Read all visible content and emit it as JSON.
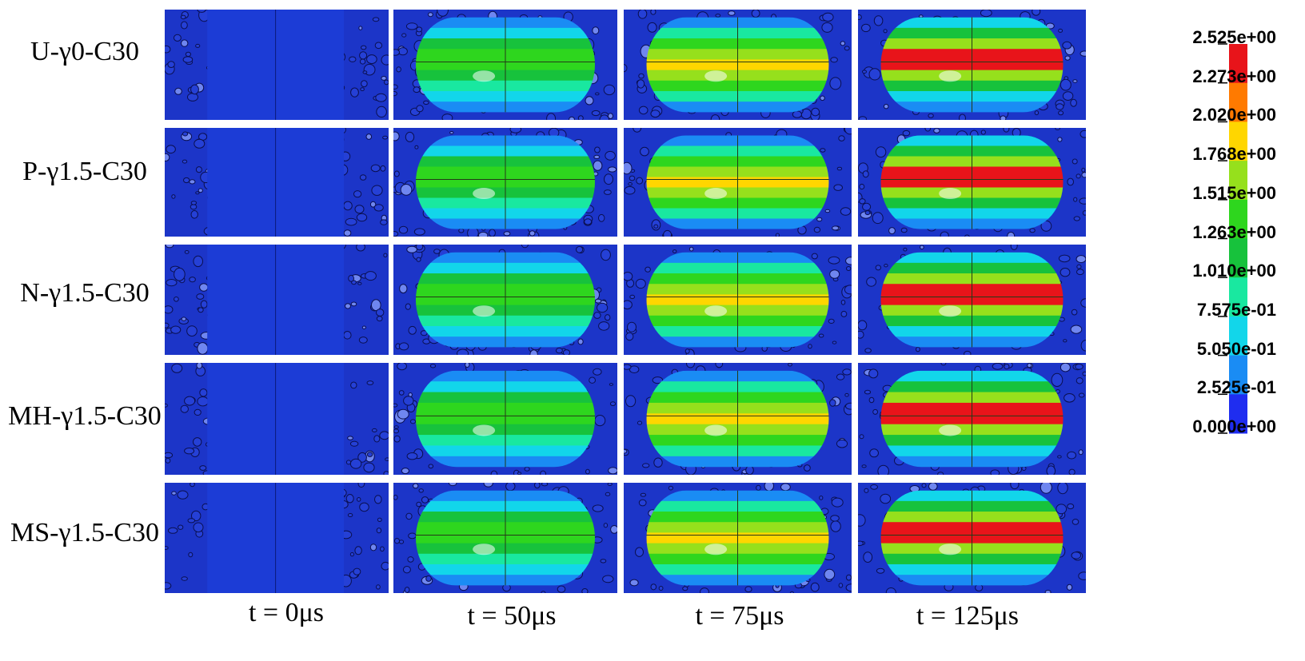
{
  "rows": [
    {
      "label": "U-γ0-C30"
    },
    {
      "label": "P-γ1.5-C30"
    },
    {
      "label": "N-γ1.5-C30"
    },
    {
      "label": "MH-γ1.5-C30"
    },
    {
      "label": "MS-γ1.5-C30"
    }
  ],
  "columns": [
    {
      "label": "t = 0μs",
      "time_us": 0,
      "level": 0.0
    },
    {
      "label": "t = 50μs",
      "time_us": 50,
      "level": 0.55
    },
    {
      "label": "t = 75μs",
      "time_us": 75,
      "level": 0.78
    },
    {
      "label": "t = 125μs",
      "time_us": 125,
      "level": 1.0
    }
  ],
  "colorbar": {
    "ticks": [
      "2.525e+00",
      "2.273e+00",
      "2.020e+00",
      "1.768e+00",
      "1.515e+00",
      "1.263e+00",
      "1.010e+00",
      "7.575e-01",
      "5.050e-01",
      "2.525e-01",
      "0.000e+00"
    ],
    "colors": [
      "#e8141a",
      "#ff7a00",
      "#ffd600",
      "#96e01c",
      "#2ed61e",
      "#17c23c",
      "#19e8a0",
      "#12d6ea",
      "#1a8cf4",
      "#1f2df0"
    ]
  },
  "colors": {
    "background_blue": "#1c35c8",
    "aggregate_edge": "#0a0f50"
  }
}
